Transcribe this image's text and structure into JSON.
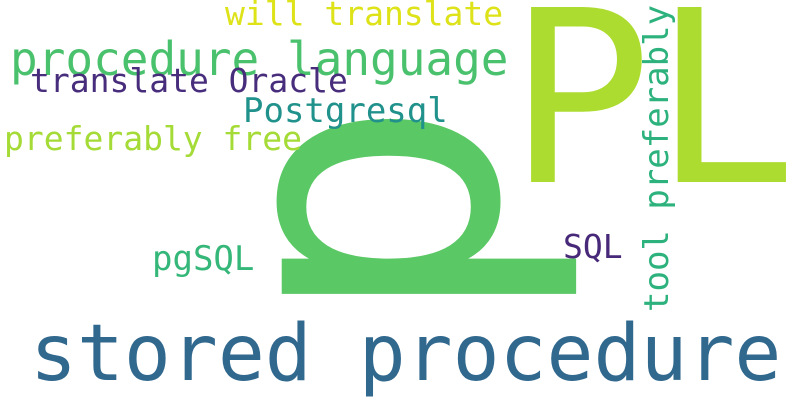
{
  "words": [
    {
      "text": "p",
      "color": "#5ac864"
    },
    {
      "text": "PL",
      "color": "#addc30"
    },
    {
      "text": "stored procedure",
      "color": "#31688e"
    },
    {
      "text": "procedure language",
      "color": "#4ac16d"
    },
    {
      "text": "will translate",
      "color": "#dde318"
    },
    {
      "text": "translate Oracle",
      "color": "#472d7b"
    },
    {
      "text": "Postgresql",
      "color": "#21918c"
    },
    {
      "text": "preferably free",
      "color": "#a5db36"
    },
    {
      "text": "tool preferably",
      "color": "#2db27d"
    },
    {
      "text": "pgSQL",
      "color": "#35b779"
    },
    {
      "text": "SQL",
      "color": "#482878"
    }
  ]
}
